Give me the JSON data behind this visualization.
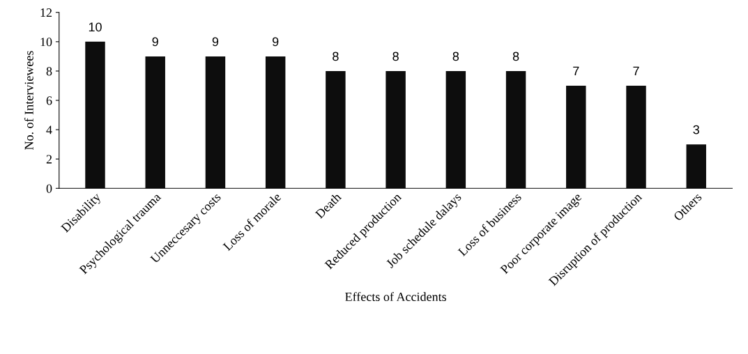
{
  "chart_data": {
    "type": "bar",
    "xlabel": "Effects of Accidents",
    "ylabel": "No. of Interviewees",
    "categories": [
      "Disability",
      "Psychological trauma",
      "Unneccesary costs",
      "Loss of morale",
      "Death",
      "Reduced production",
      "Job schedule dalays",
      "Loss of business",
      "Poor corporate image",
      "Disruption of production",
      "Others"
    ],
    "values": [
      10,
      9,
      9,
      9,
      8,
      8,
      8,
      8,
      7,
      7,
      3
    ],
    "color": "#0d0d0d",
    "ylim": [
      0,
      12
    ],
    "yticks": [
      0,
      2,
      4,
      6,
      8,
      10,
      12
    ],
    "grid": false,
    "data_labels": true
  }
}
